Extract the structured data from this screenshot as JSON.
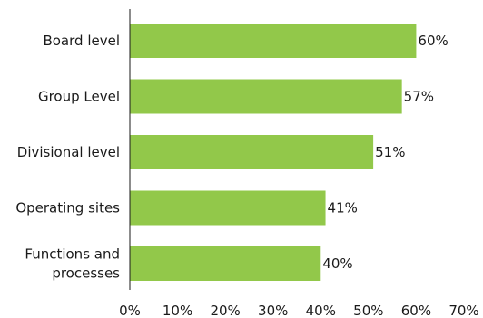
{
  "chart_data": {
    "type": "bar",
    "orientation": "horizontal",
    "categories": [
      [
        "Board level"
      ],
      [
        "Group Level"
      ],
      [
        "Divisional level"
      ],
      [
        "Operating sites"
      ],
      [
        "Functions and",
        "processes"
      ]
    ],
    "values": [
      60,
      57,
      51,
      41,
      40
    ],
    "data_labels": [
      "60%",
      "57%",
      "51%",
      "41%",
      "40%"
    ],
    "xlim": [
      0,
      70
    ],
    "x_ticks": [
      0,
      10,
      20,
      30,
      40,
      50,
      60,
      70
    ],
    "x_tick_labels": [
      "0%",
      "10%",
      "20%",
      "30%",
      "40%",
      "50%",
      "60%",
      "70%"
    ],
    "grid": false,
    "bar_color": "#92c84a",
    "axis_color": "#1a1a1a",
    "title": "",
    "xlabel": "",
    "ylabel": ""
  }
}
